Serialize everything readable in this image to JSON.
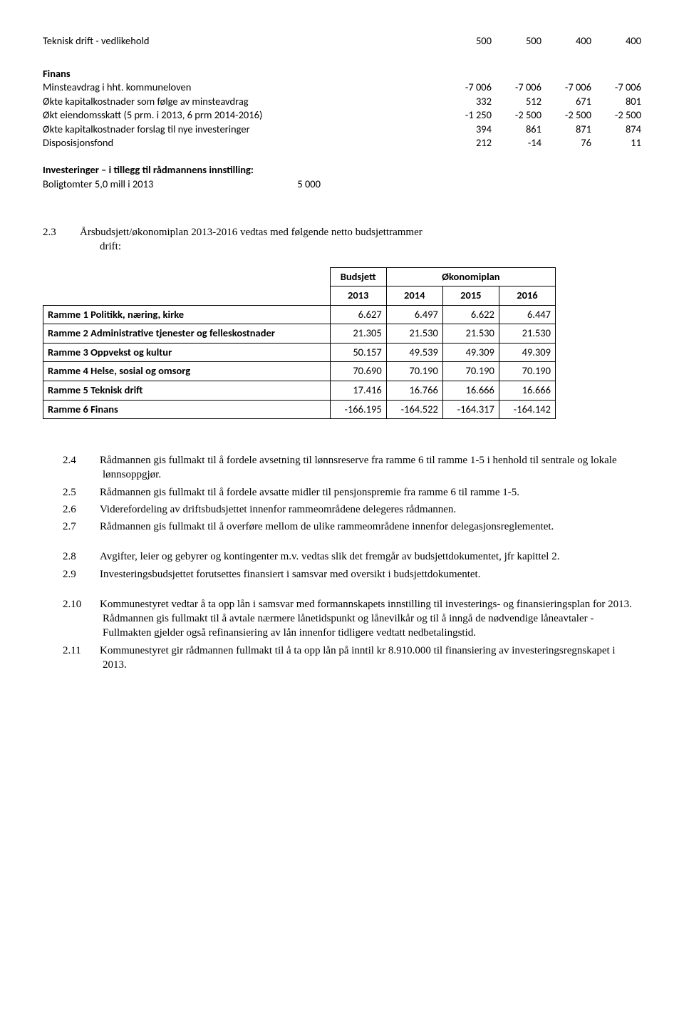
{
  "top": {
    "line1_label": "Teknisk drift - vedlikehold",
    "line1_vals": [
      "500",
      "500",
      "400",
      "400"
    ]
  },
  "finans": {
    "head": "Finans",
    "rows": [
      {
        "label": "Minsteavdrag i hht. kommuneloven",
        "vals": [
          "-7 006",
          "-7 006",
          "-7 006",
          "-7 006"
        ]
      },
      {
        "label": "Økte kapitalkostnader som følge av minsteavdrag",
        "vals": [
          "332",
          "512",
          "671",
          "801"
        ]
      },
      {
        "label": "Økt eiendomsskatt (5 prm. i 2013, 6 prm 2014-2016)",
        "vals": [
          "-1 250",
          "-2 500",
          "-2 500",
          "-2 500"
        ]
      },
      {
        "label": "Økte kapitalkostnader forslag til nye investeringer",
        "vals": [
          "394",
          "861",
          "871",
          "874"
        ]
      },
      {
        "label": "Disposisjonsfond",
        "vals": [
          "212",
          "-14",
          "76",
          "11"
        ]
      }
    ]
  },
  "invest": {
    "head": "Investeringer – i tillegg til rådmannens innstilling:",
    "row_label": "Boligtomter 5,0 mill i 2013",
    "row_val": "5 000"
  },
  "p23": {
    "num": "2.3",
    "text": "Årsbudsjett/økonomiplan 2013-2016 vedtas med følgende netto budsjettrammer",
    "text2": "drift:"
  },
  "table": {
    "h_budsjett": "Budsjett",
    "h_okonomiplan": "Økonomiplan",
    "years": [
      "2013",
      "2014",
      "2015",
      "2016"
    ],
    "rows": [
      {
        "label": "Ramme 1 Politikk, næring, kirke",
        "vals": [
          "6.627",
          "6.497",
          "6.622",
          "6.447"
        ]
      },
      {
        "label": "Ramme 2 Administrative tjenester og felleskostnader",
        "vals": [
          "21.305",
          "21.530",
          "21.530",
          "21.530"
        ]
      },
      {
        "label": "Ramme 3 Oppvekst og kultur",
        "vals": [
          "50.157",
          "49.539",
          "49.309",
          "49.309"
        ]
      },
      {
        "label": "Ramme 4 Helse, sosial og omsorg",
        "vals": [
          "70.690",
          "70.190",
          "70.190",
          "70.190"
        ]
      },
      {
        "label": "Ramme 5 Teknisk drift",
        "vals": [
          "17.416",
          "16.766",
          "16.666",
          "16.666"
        ]
      },
      {
        "label": "Ramme 6 Finans",
        "vals": [
          "-166.195",
          "-164.522",
          "-164.317",
          "-164.142"
        ]
      }
    ]
  },
  "paras": {
    "p24": {
      "num": "2.4",
      "text": "Rådmannen gis fullmakt til å fordele avsetning til lønnsreserve fra ramme 6 til ramme 1-5 i henhold til sentrale og lokale lønnsoppgjør."
    },
    "p25": {
      "num": "2.5",
      "text": "Rådmannen gis fullmakt til å fordele avsatte midler til pensjonspremie fra ramme 6 til ramme 1-5."
    },
    "p26": {
      "num": "2.6",
      "text": "Viderefordeling av driftsbudsjettet innenfor rammeområdene delegeres rådmannen."
    },
    "p27": {
      "num": "2.7",
      "text": "Rådmannen gis fullmakt til å overføre mellom de ulike rammeområdene innenfor delegasjonsreglementet."
    },
    "p28": {
      "num": "2.8",
      "text": "Avgifter, leier og gebyrer og kontingenter m.v. vedtas slik det fremgår av budsjettdokumentet, jfr kapittel 2."
    },
    "p29": {
      "num": "2.9",
      "text": "Investeringsbudsjettet forutsettes finansiert i samsvar med oversikt i budsjettdokumentet."
    },
    "p210": {
      "num": "2.10",
      "text": "Kommunestyret vedtar å ta opp lån i samsvar med formannskapets innstilling til investerings- og finansieringsplan for 2013. Rådmannen gis fullmakt til å avtale nærmere lånetidspunkt og lånevilkår og til å inngå de nødvendige låneavtaler - Fullmakten gjelder også refinansiering av lån innenfor tidligere vedtatt nedbetalingstid."
    },
    "p211": {
      "num": "2.11",
      "text": "Kommunestyret gir rådmannen fullmakt til å ta opp lån på inntil kr 8.910.000 til finansiering av investeringsregnskapet i 2013."
    }
  }
}
